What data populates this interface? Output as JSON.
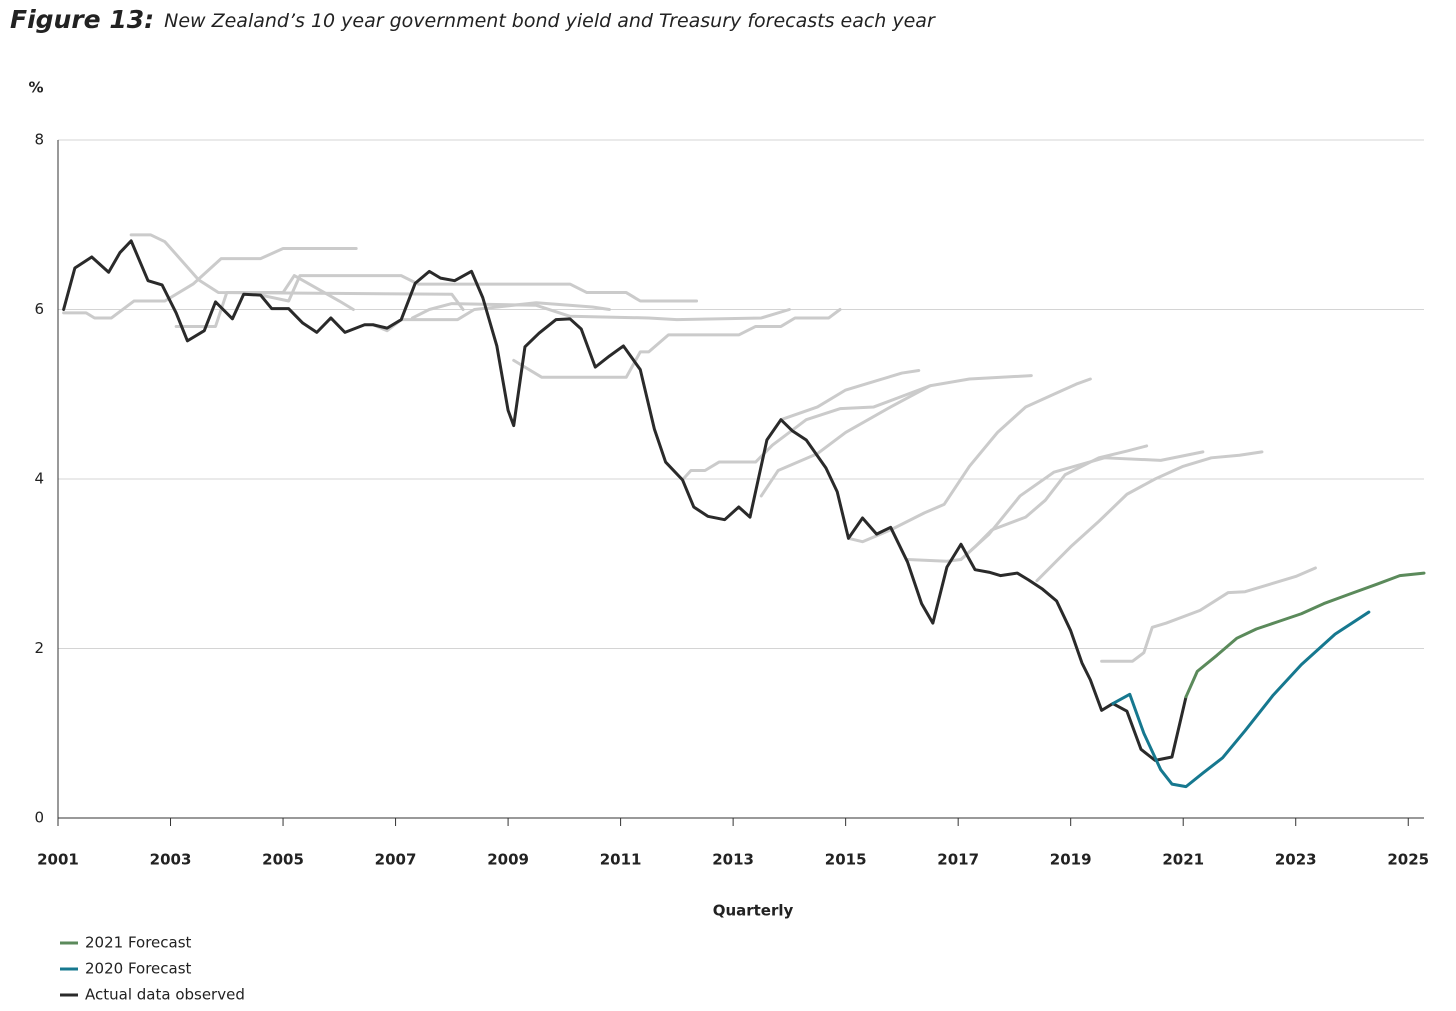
{
  "chart_data": {
    "type": "line",
    "title_prefix": "Figure 13:",
    "title": "New Zealand’s 10 year government bond yield and Treasury forecasts each year",
    "y_unit": "%",
    "x_label": "Quarterly",
    "xlim": [
      2001,
      2025.28
    ],
    "xticks": [
      2001,
      2003,
      2005,
      2007,
      2009,
      2011,
      2013,
      2015,
      2017,
      2019,
      2021,
      2023,
      2025
    ],
    "ylim": [
      0,
      8
    ],
    "yticks": [
      0,
      2,
      4,
      6,
      8
    ],
    "grid": true,
    "series": [
      {
        "name": "2021 Forecast",
        "color": "#5b8a5b",
        "x": [
          2021.05,
          2021.25,
          2021.6,
          2021.95,
          2022.3,
          2022.7,
          2023.1,
          2023.5,
          2023.95,
          2024.45,
          2024.85,
          2025.28
        ],
        "values": [
          1.43,
          1.73,
          1.92,
          2.12,
          2.23,
          2.32,
          2.41,
          2.53,
          2.64,
          2.76,
          2.86,
          2.89
        ]
      },
      {
        "name": "2020 Forecast",
        "color": "#16788f",
        "x": [
          2019.75,
          2020.05,
          2020.3,
          2020.6,
          2020.8,
          2021.05,
          2021.35,
          2021.7,
          2022.1,
          2022.6,
          2023.1,
          2023.7,
          2024.3
        ],
        "values": [
          1.35,
          1.46,
          1.0,
          0.57,
          0.4,
          0.37,
          0.53,
          0.71,
          1.03,
          1.45,
          1.81,
          2.17,
          2.43
        ]
      },
      {
        "name": "Actual data observed",
        "color": "#2a2a2a",
        "x": [
          2001.1,
          2001.3,
          2001.6,
          2001.9,
          2002.1,
          2002.3,
          2002.6,
          2002.85,
          2003.1,
          2003.3,
          2003.6,
          2003.8,
          2004.1,
          2004.3,
          2004.6,
          2004.8,
          2005.1,
          2005.35,
          2005.6,
          2005.85,
          2006.1,
          2006.45,
          2006.6,
          2006.85,
          2007.1,
          2007.35,
          2007.6,
          2007.8,
          2008.05,
          2008.35,
          2008.55,
          2008.8,
          2009.0,
          2009.1,
          2009.3,
          2009.55,
          2009.85,
          2010.1,
          2010.3,
          2010.55,
          2010.8,
          2011.05,
          2011.35,
          2011.6,
          2011.8,
          2012.1,
          2012.3,
          2012.55,
          2012.85,
          2013.1,
          2013.3,
          2013.6,
          2013.85,
          2014.05,
          2014.3,
          2014.65,
          2014.85,
          2015.05,
          2015.3,
          2015.55,
          2015.8,
          2016.1,
          2016.35,
          2016.55,
          2016.8,
          2017.05,
          2017.3,
          2017.55,
          2017.75,
          2018.05,
          2018.25,
          2018.5,
          2018.75,
          2019.0,
          2019.2,
          2019.35,
          2019.55,
          2019.75,
          2020.0,
          2020.25,
          2020.5,
          2020.8,
          2021.05
        ],
        "values": [
          6.0,
          6.49,
          6.62,
          6.44,
          6.67,
          6.81,
          6.34,
          6.29,
          5.96,
          5.63,
          5.75,
          6.09,
          5.89,
          6.18,
          6.17,
          6.01,
          6.01,
          5.84,
          5.73,
          5.9,
          5.73,
          5.82,
          5.82,
          5.78,
          5.88,
          6.31,
          6.45,
          6.37,
          6.34,
          6.45,
          6.14,
          5.57,
          4.81,
          4.63,
          5.56,
          5.72,
          5.88,
          5.89,
          5.77,
          5.32,
          5.45,
          5.57,
          5.29,
          4.59,
          4.2,
          3.99,
          3.67,
          3.56,
          3.52,
          3.67,
          3.55,
          4.46,
          4.7,
          4.57,
          4.46,
          4.13,
          3.85,
          3.3,
          3.54,
          3.35,
          3.43,
          3.02,
          2.53,
          2.3,
          2.96,
          3.23,
          2.93,
          2.9,
          2.86,
          2.89,
          2.81,
          2.7,
          2.56,
          2.21,
          1.83,
          1.63,
          1.27,
          1.35,
          1.26,
          0.81,
          0.68,
          0.72,
          1.43
        ]
      },
      {
        "color": "#cbcbcb",
        "x": [
          2001.1,
          2001.5,
          2001.65,
          2001.95,
          2002.35,
          2002.9,
          2003.4,
          2003.9,
          2004.6,
          2005.0,
          2006.3
        ],
        "values": [
          5.96,
          5.96,
          5.9,
          5.9,
          6.1,
          6.1,
          6.3,
          6.6,
          6.6,
          6.72,
          6.72
        ]
      },
      {
        "color": "#cbcbcb",
        "x": [
          2002.3,
          2002.65,
          2002.9,
          2003.5,
          2003.85,
          2008.0,
          2008.2
        ],
        "values": [
          6.88,
          6.88,
          6.8,
          6.35,
          6.2,
          6.18,
          6.0
        ]
      },
      {
        "color": "#cbcbcb",
        "x": [
          2003.1,
          2003.8,
          2004.0,
          2005.0,
          2005.2,
          2005.6,
          2006.0,
          2006.25
        ],
        "values": [
          5.8,
          5.8,
          6.2,
          6.2,
          6.4,
          6.25,
          6.1,
          6.0
        ]
      },
      {
        "color": "#cbcbcb",
        "x": [
          2004.6,
          2005.1,
          2005.3,
          2007.1,
          2007.4,
          2008.3,
          2010.1,
          2010.4,
          2011.1,
          2011.35,
          2012.35
        ],
        "values": [
          6.17,
          6.1,
          6.4,
          6.4,
          6.3,
          6.3,
          6.3,
          6.2,
          6.2,
          6.1,
          6.1
        ]
      },
      {
        "color": "#cbcbcb",
        "x": [
          2006.6,
          2006.85,
          2007.1,
          2008.1,
          2008.4,
          2009.5,
          2010.5,
          2010.8
        ],
        "values": [
          5.82,
          5.75,
          5.88,
          5.88,
          6.0,
          6.08,
          6.03,
          6.0
        ]
      },
      {
        "color": "#cbcbcb",
        "x": [
          2007.3,
          2007.6,
          2008.0,
          2009.5,
          2010.1,
          2011.5,
          2012.0,
          2013.5,
          2014.0
        ],
        "values": [
          5.9,
          6.0,
          6.07,
          6.05,
          5.92,
          5.9,
          5.88,
          5.9,
          6.0
        ]
      },
      {
        "color": "#cbcbcb",
        "x": [
          2009.1,
          2009.6,
          2011.1,
          2011.35,
          2011.5,
          2011.85,
          2013.1,
          2013.4,
          2013.85,
          2014.1,
          2014.7,
          2014.9
        ],
        "values": [
          5.4,
          5.2,
          5.2,
          5.5,
          5.5,
          5.7,
          5.7,
          5.8,
          5.8,
          5.9,
          5.9,
          6.0
        ]
      },
      {
        "color": "#cbcbcb",
        "x": [
          2012.1,
          2012.25,
          2012.5,
          2012.75,
          2013.4,
          2013.7,
          2014.3,
          2014.9,
          2015.5,
          2016.1,
          2016.5,
          2017.2,
          2018.3
        ],
        "values": [
          3.99,
          4.1,
          4.1,
          4.2,
          4.2,
          4.4,
          4.7,
          4.83,
          4.85,
          5.0,
          5.1,
          5.18,
          5.22
        ]
      },
      {
        "color": "#cbcbcb",
        "x": [
          2013.5,
          2013.8,
          2014.5,
          2015.0,
          2015.8,
          2016.5
        ],
        "values": [
          3.8,
          4.1,
          4.3,
          4.55,
          4.85,
          5.1
        ]
      },
      {
        "color": "#cbcbcb",
        "x": [
          2013.85,
          2014.5,
          2015.0,
          2015.5,
          2016.0,
          2016.3
        ],
        "values": [
          4.7,
          4.85,
          5.05,
          5.15,
          5.25,
          5.28
        ]
      },
      {
        "color": "#cbcbcb",
        "x": [
          2015.05,
          2015.3,
          2015.8,
          2016.4,
          2016.75,
          2017.2,
          2017.7,
          2018.2,
          2018.7,
          2019.1,
          2019.35
        ],
        "values": [
          3.3,
          3.26,
          3.4,
          3.6,
          3.7,
          4.15,
          4.55,
          4.85,
          5.0,
          5.12,
          5.18
        ]
      },
      {
        "color": "#cbcbcb",
        "x": [
          2016.1,
          2016.8,
          2017.05,
          2017.3,
          2017.6,
          2018.2,
          2018.55,
          2018.9,
          2019.5,
          2020.0,
          2020.35
        ],
        "values": [
          3.05,
          3.03,
          3.05,
          3.2,
          3.4,
          3.55,
          3.75,
          4.05,
          4.25,
          4.33,
          4.39
        ]
      },
      {
        "color": "#cbcbcb",
        "x": [
          2017.05,
          2017.55,
          2018.1,
          2018.7,
          2019.6,
          2020.6,
          2021.35
        ],
        "values": [
          3.05,
          3.35,
          3.8,
          4.08,
          4.25,
          4.22,
          4.32
        ]
      },
      {
        "color": "#cbcbcb",
        "x": [
          2018.4,
          2019.0,
          2019.5,
          2020.0,
          2020.5,
          2021.0,
          2021.5,
          2022.0,
          2022.4
        ],
        "values": [
          2.8,
          3.2,
          3.5,
          3.82,
          4.0,
          4.15,
          4.25,
          4.28,
          4.32
        ]
      },
      {
        "color": "#cbcbcb",
        "x": [
          2019.55,
          2020.1,
          2020.3,
          2020.45,
          2020.7,
          2021.3,
          2021.8,
          2022.1,
          2023.0,
          2023.35
        ],
        "values": [
          1.85,
          1.85,
          1.95,
          2.25,
          2.3,
          2.45,
          2.66,
          2.67,
          2.85,
          2.95
        ]
      }
    ]
  }
}
